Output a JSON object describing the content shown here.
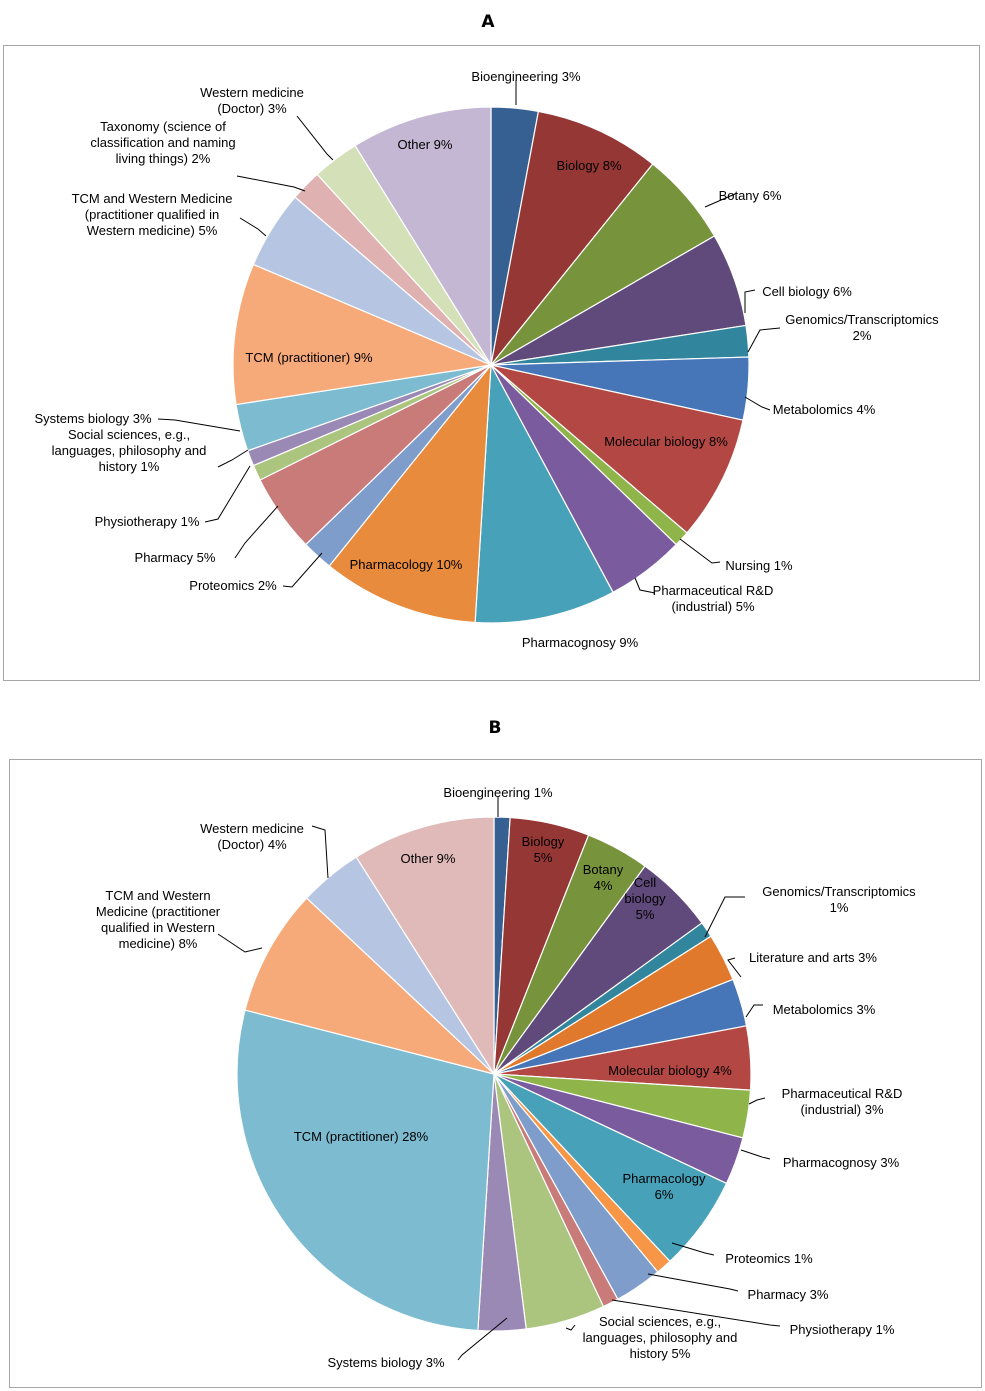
{
  "panels": [
    {
      "title": "A",
      "chart_data": {
        "type": "pie",
        "title": "A",
        "start_angle_deg": 0,
        "direction": "clockwise",
        "slices": [
          {
            "label": "Bioengineering 3%",
            "value": 3,
            "color": "#366092"
          },
          {
            "label": "Biology 8%",
            "value": 8,
            "color": "#953735"
          },
          {
            "label": "Botany 6%",
            "value": 6,
            "color": "#77933C"
          },
          {
            "label": "Cell biology 6%",
            "value": 6,
            "color": "#604A7B"
          },
          {
            "label": "Genomics/Transcriptomics 2%",
            "value": 2,
            "color": "#31859C"
          },
          {
            "label": "Metabolomics 4%",
            "value": 4,
            "color": "#4676B8"
          },
          {
            "label": "Molecular biology 8%",
            "value": 8,
            "color": "#B34743"
          },
          {
            "label": "Nursing 1%",
            "value": 1,
            "color": "#8EB44A"
          },
          {
            "label": "Pharmaceutical R&D (industrial) 5%",
            "value": 5,
            "color": "#7A5C9E"
          },
          {
            "label": "Pharmacognosy 9%",
            "value": 9,
            "color": "#46A1B9"
          },
          {
            "label": "Pharmacology 10%",
            "value": 10,
            "color": "#E88B3C"
          },
          {
            "label": "Proteomics 2%",
            "value": 2,
            "color": "#7F9DCB"
          },
          {
            "label": "Pharmacy 5%",
            "value": 5,
            "color": "#C97B7A"
          },
          {
            "label": "Physiotherapy 1%",
            "value": 1,
            "color": "#ABC57F"
          },
          {
            "label": "Social sciences, e.g., languages, philosophy and history 1%",
            "value": 1,
            "color": "#9A89B5"
          },
          {
            "label": "Systems biology 3%",
            "value": 3,
            "color": "#7DBBD0"
          },
          {
            "label": "TCM (practitioner) 9%",
            "value": 9,
            "color": "#F6A979"
          },
          {
            "label": "TCM and Western Medicine (practitioner qualified in Western medicine) 5%",
            "value": 5,
            "color": "#B6C6E2"
          },
          {
            "label": "Taxonomy (science of classification and naming living things) 2%",
            "value": 2,
            "color": "#E0B1B1"
          },
          {
            "label": "Western medicine (Doctor) 3%",
            "value": 3,
            "color": "#D3E0B8"
          },
          {
            "label": "Other 9%",
            "value": 9,
            "color": "#C3B7D3"
          }
        ]
      }
    },
    {
      "title": "B",
      "chart_data": {
        "type": "pie",
        "title": "B",
        "start_angle_deg": 0,
        "direction": "clockwise",
        "slices": [
          {
            "label": "Bioengineering 1%",
            "value": 1,
            "color": "#366092"
          },
          {
            "label": "Biology 5%",
            "value": 5,
            "color": "#953735"
          },
          {
            "label": "Botany 4%",
            "value": 4,
            "color": "#77933C"
          },
          {
            "label": "Cell biology 5%",
            "value": 5,
            "color": "#604A7B"
          },
          {
            "label": "Genomics/Transcriptomics 1%",
            "value": 1,
            "color": "#31859C"
          },
          {
            "label": "Literature and arts 3%",
            "value": 3,
            "color": "#E0792C"
          },
          {
            "label": "Metabolomics 3%",
            "value": 3,
            "color": "#4676B8"
          },
          {
            "label": "Molecular biology 4%",
            "value": 4,
            "color": "#B34743"
          },
          {
            "label": "Pharmaceutical R&D (industrial) 3%",
            "value": 3,
            "color": "#8EB44A"
          },
          {
            "label": "Pharmacognosy 3%",
            "value": 3,
            "color": "#7A5C9E"
          },
          {
            "label": "Pharmacology 6%",
            "value": 6,
            "color": "#46A1B9"
          },
          {
            "label": "Proteomics 1%",
            "value": 1,
            "color": "#F79646"
          },
          {
            "label": "Pharmacy 3%",
            "value": 3,
            "color": "#7F9DCB"
          },
          {
            "label": "Physiotherapy 1%",
            "value": 1,
            "color": "#C97B7A"
          },
          {
            "label": "Social sciences, e.g., languages, philosophy and history 5%",
            "value": 5,
            "color": "#ABC57F"
          },
          {
            "label": "Systems biology 3%",
            "value": 3,
            "color": "#9A89B5"
          },
          {
            "label": "TCM (practitioner) 28%",
            "value": 28,
            "color": "#7DBBD0"
          },
          {
            "label": "TCM and Western Medicine (practitioner qualified in Western medicine) 8%",
            "value": 8,
            "color": "#F6A979"
          },
          {
            "label": "Western medicine (Doctor) 4%",
            "value": 4,
            "color": "#B6C6E2"
          },
          {
            "label": "Other 9%",
            "value": 9,
            "color": "#E0B9B9"
          }
        ]
      }
    }
  ],
  "labels_a": [
    [
      "Bioengineering 3%"
    ],
    [
      "Biology 8%"
    ],
    [
      "Botany 6%"
    ],
    [
      "Cell biology 6%"
    ],
    [
      "Genomics/Transcriptomics",
      "2%"
    ],
    [
      "Metabolomics 4%"
    ],
    [
      "Molecular biology 8%"
    ],
    [
      "Nursing 1%"
    ],
    [
      "Pharmaceutical R&D",
      "(industrial) 5%"
    ],
    [
      "Pharmacognosy 9%"
    ],
    [
      "Pharmacology 10%"
    ],
    [
      "Proteomics 2%"
    ],
    [
      "Pharmacy 5%"
    ],
    [
      "Physiotherapy 1%"
    ],
    [
      "Social sciences, e.g.,",
      "languages, philosophy and",
      "history 1%"
    ],
    [
      "Systems biology 3%"
    ],
    [
      "TCM (practitioner) 9%"
    ],
    [
      "TCM and Western Medicine",
      "(practitioner qualified in",
      "Western medicine) 5%"
    ],
    [
      "Taxonomy (science of",
      "classification and naming",
      "living things) 2%"
    ],
    [
      "Western medicine",
      "(Doctor) 3%"
    ],
    [
      "Other 9%"
    ]
  ],
  "labels_b": [
    [
      "Bioengineering 1%"
    ],
    [
      "Biology",
      "5%"
    ],
    [
      "Botany",
      "4%"
    ],
    [
      "Cell",
      "biology",
      "5%"
    ],
    [
      "Genomics/Transcriptomics",
      "1%"
    ],
    [
      "Literature and arts 3%"
    ],
    [
      "Metabolomics 3%"
    ],
    [
      "Molecular biology 4%"
    ],
    [
      "Pharmaceutical R&D",
      "(industrial) 3%"
    ],
    [
      "Pharmacognosy 3%"
    ],
    [
      "Pharmacology",
      "6%"
    ],
    [
      "Proteomics 1%"
    ],
    [
      "Pharmacy 3%"
    ],
    [
      "Physiotherapy 1%"
    ],
    [
      "Social sciences, e.g.,",
      "languages, philosophy and",
      "history 5%"
    ],
    [
      "Systems biology 3%"
    ],
    [
      "TCM (practitioner) 28%"
    ],
    [
      "TCM and Western",
      "Medicine (practitioner",
      "qualified in Western",
      "medicine) 8%"
    ],
    [
      "Western medicine",
      "(Doctor) 4%"
    ],
    [
      "Other 9%"
    ]
  ]
}
